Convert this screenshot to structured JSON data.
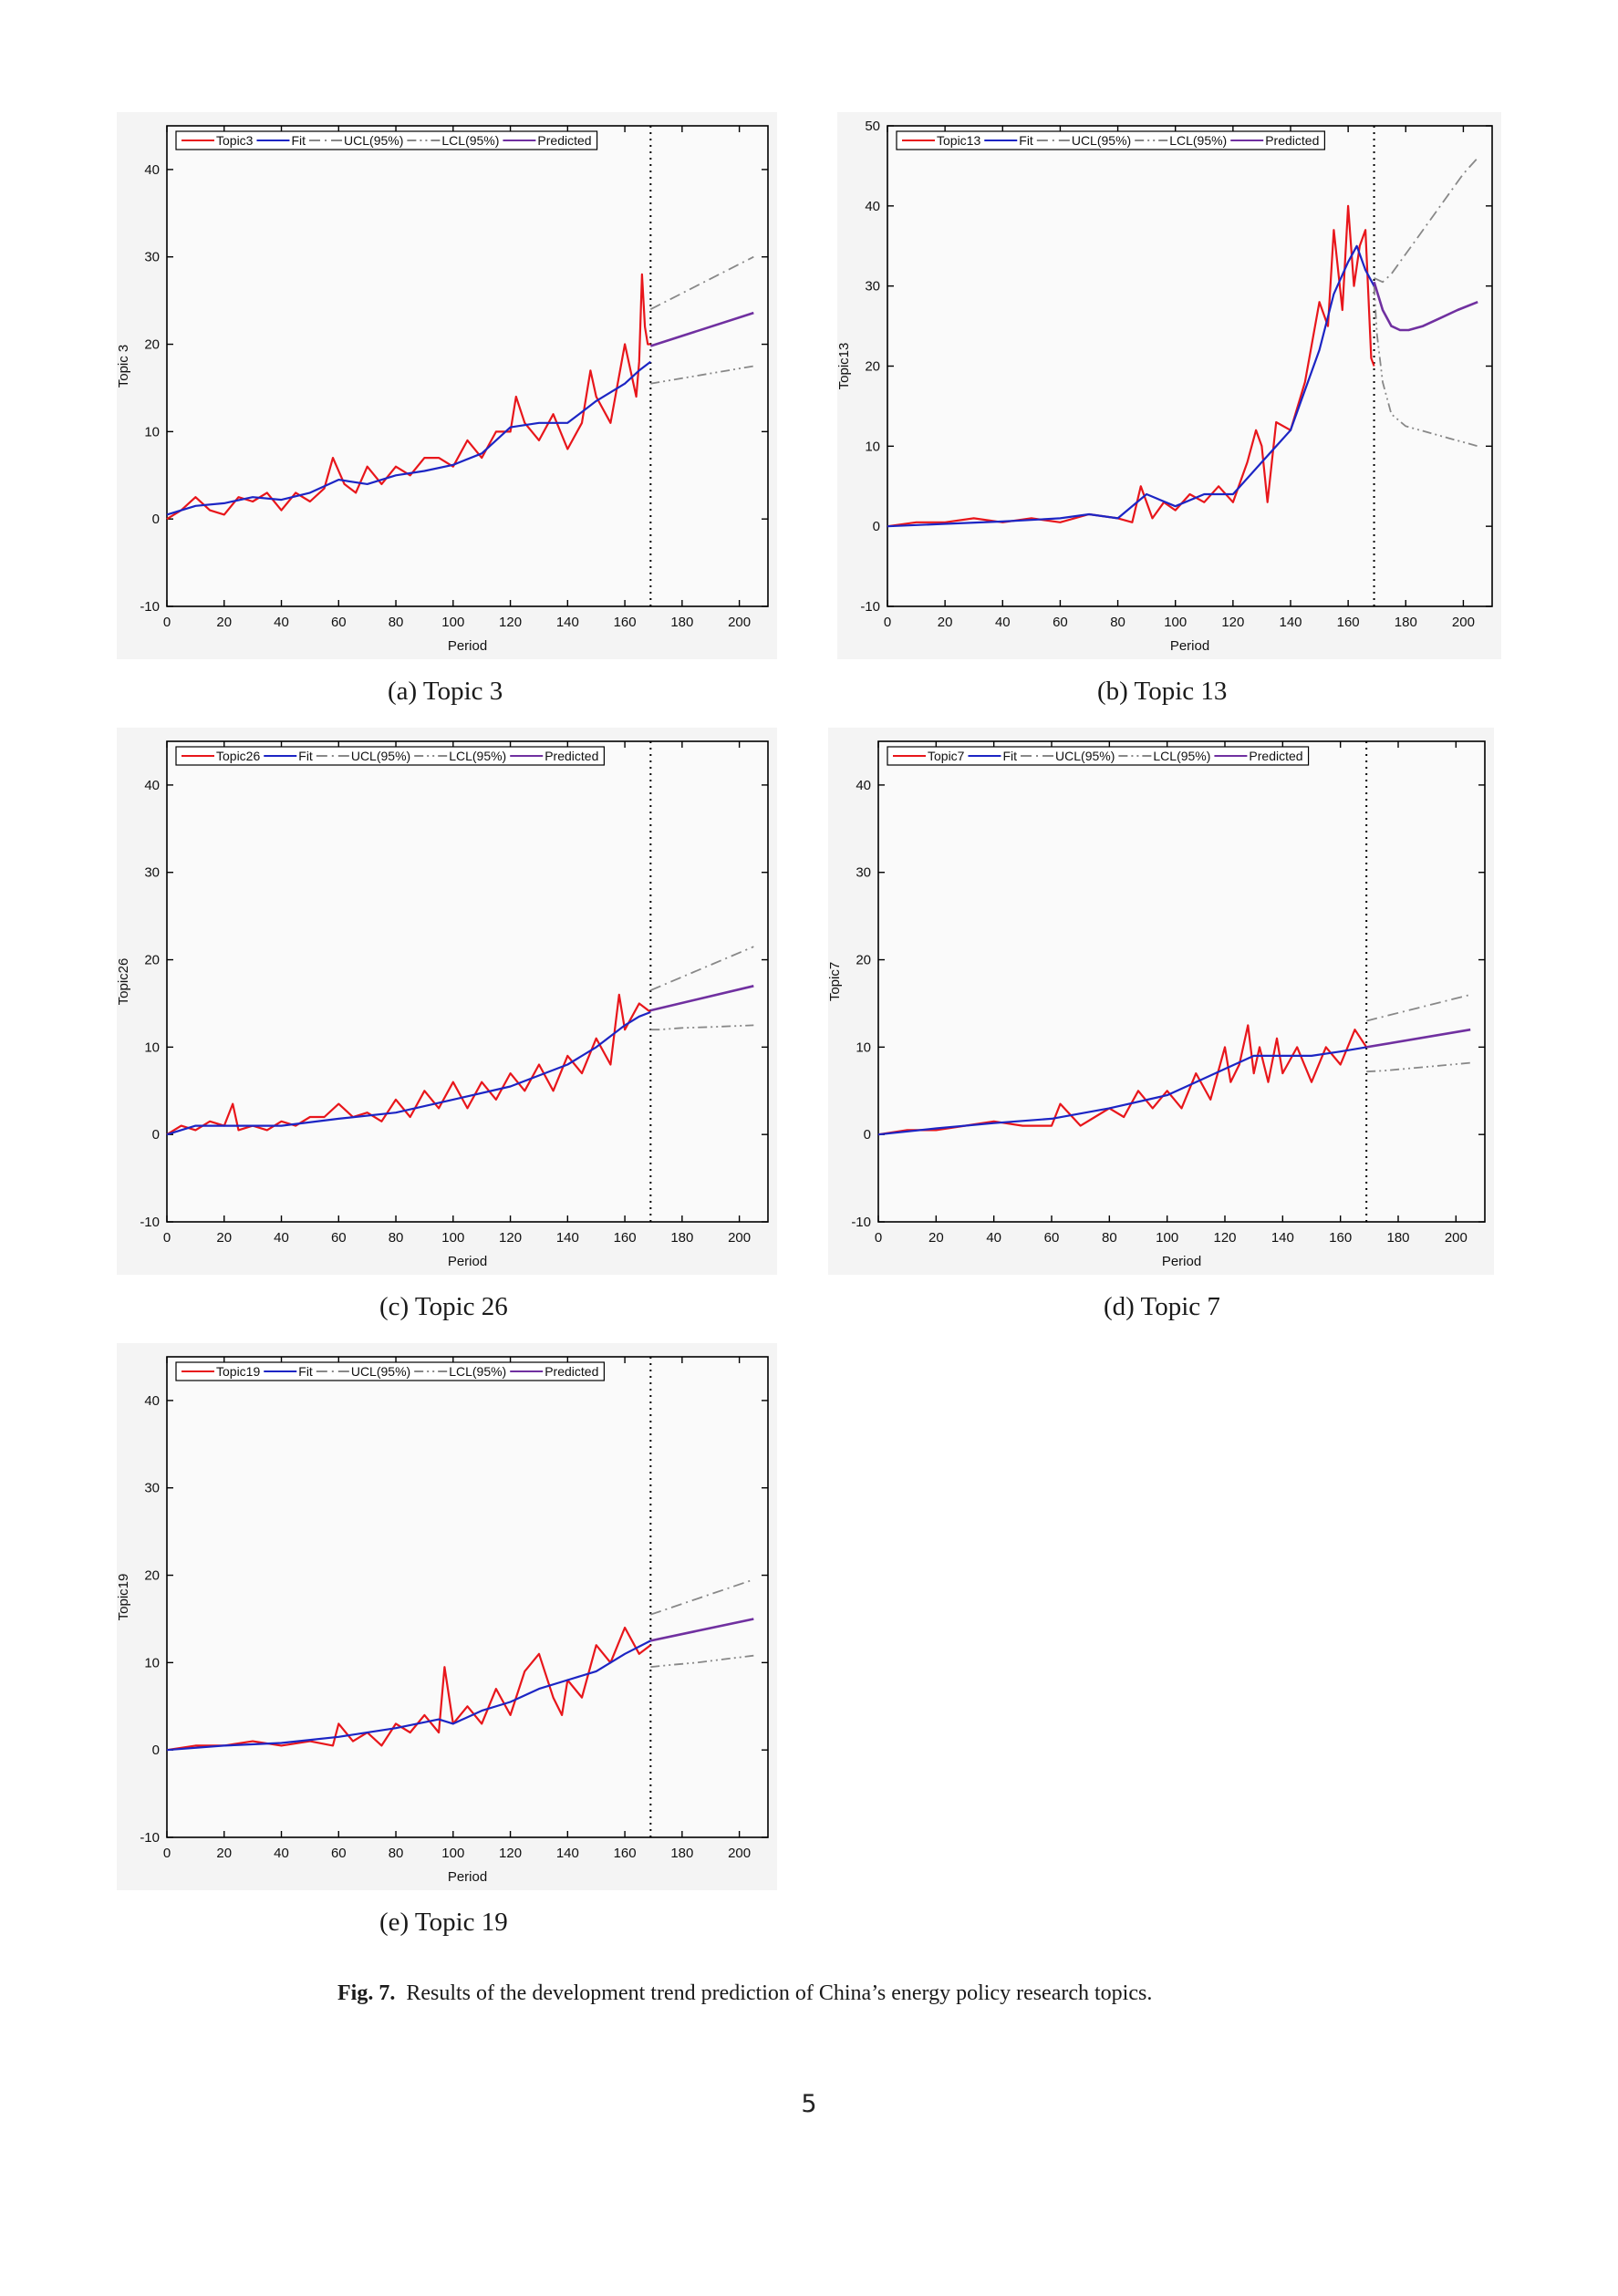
{
  "figure": {
    "label": "Fig. 7.",
    "caption": "Results of the development trend prediction of China’s energy policy research topics."
  },
  "page_number": "5",
  "legend_labels": {
    "fit": "Fit",
    "ucl": "UCL(95%)",
    "lcl": "LCL(95%)",
    "predicted": "Predicted"
  },
  "colors": {
    "actual": "#e8161b",
    "fit": "#1c25c4",
    "ucl": "#888888",
    "lcl": "#888888",
    "predicted": "#7030a0",
    "axis": "#000000"
  },
  "chart_data": [
    {
      "id": "a",
      "caption": "(a) Topic 3",
      "type": "line",
      "xlabel": "Period",
      "ylabel": "Topic 3",
      "xlim": [
        0,
        210
      ],
      "ylim": [
        -10,
        45
      ],
      "xticks": [
        0,
        20,
        40,
        60,
        80,
        100,
        120,
        140,
        160,
        180,
        200
      ],
      "yticks": [
        -10,
        0,
        10,
        20,
        30,
        40
      ],
      "split_x": 169,
      "legend": [
        "Topic3",
        "Fit",
        "UCL(95%)",
        "LCL(95%)",
        "Predicted"
      ],
      "series": [
        {
          "name": "Topic3",
          "kind": "actual",
          "x": [
            0,
            5,
            10,
            15,
            20,
            25,
            30,
            35,
            40,
            45,
            50,
            55,
            58,
            62,
            66,
            70,
            75,
            80,
            85,
            90,
            95,
            100,
            105,
            110,
            115,
            120,
            122,
            125,
            130,
            135,
            140,
            145,
            148,
            150,
            155,
            160,
            164,
            165,
            166,
            167,
            168,
            169
          ],
          "y": [
            0,
            1,
            2.5,
            1,
            0.5,
            2.5,
            2,
            3,
            1,
            3,
            2,
            3.5,
            7,
            4,
            3,
            6,
            4,
            6,
            5,
            7,
            7,
            6,
            9,
            7,
            10,
            10,
            14,
            11,
            9,
            12,
            8,
            11,
            17,
            14,
            11,
            20,
            14,
            18,
            28,
            22,
            20,
            20
          ]
        },
        {
          "name": "Fit",
          "kind": "fit",
          "x": [
            0,
            10,
            20,
            30,
            40,
            50,
            60,
            70,
            80,
            90,
            100,
            110,
            120,
            130,
            140,
            150,
            160,
            165,
            169
          ],
          "y": [
            0.5,
            1.5,
            1.8,
            2.5,
            2.2,
            3,
            4.5,
            4,
            5,
            5.5,
            6.2,
            7.5,
            10.5,
            11,
            11,
            13.5,
            15.5,
            17,
            18
          ]
        },
        {
          "name": "UCL(95%)",
          "kind": "ucl",
          "x": [
            169,
            205
          ],
          "y": [
            24,
            30
          ]
        },
        {
          "name": "LCL(95%)",
          "kind": "lcl",
          "x": [
            169,
            205
          ],
          "y": [
            15.5,
            17.5
          ]
        },
        {
          "name": "Predicted",
          "kind": "predicted",
          "x": [
            169,
            205
          ],
          "y": [
            19.8,
            23.6
          ]
        }
      ]
    },
    {
      "id": "b",
      "caption": "(b) Topic 13",
      "type": "line",
      "xlabel": "Period",
      "ylabel": "Topic13",
      "xlim": [
        0,
        210
      ],
      "ylim": [
        -10,
        50
      ],
      "xticks": [
        0,
        20,
        40,
        60,
        80,
        100,
        120,
        140,
        160,
        180,
        200
      ],
      "yticks": [
        -10,
        0,
        10,
        20,
        30,
        40,
        50
      ],
      "split_x": 169,
      "legend": [
        "Topic13",
        "Fit",
        "UCL(95%)",
        "LCL(95%)",
        "Predicted"
      ],
      "series": [
        {
          "name": "Topic13",
          "kind": "actual",
          "x": [
            0,
            10,
            20,
            30,
            40,
            50,
            60,
            70,
            80,
            85,
            88,
            92,
            96,
            100,
            105,
            110,
            115,
            120,
            125,
            128,
            130,
            132,
            135,
            140,
            145,
            150,
            153,
            155,
            158,
            160,
            162,
            164,
            166,
            168,
            169
          ],
          "y": [
            0,
            0.5,
            0.5,
            1,
            0.5,
            1,
            0.5,
            1.5,
            1,
            0.5,
            5,
            1,
            3,
            2,
            4,
            3,
            5,
            3,
            8,
            12,
            10,
            3,
            13,
            12,
            18,
            28,
            25,
            37,
            27,
            40,
            30,
            35,
            37,
            21,
            20
          ]
        },
        {
          "name": "Fit",
          "kind": "fit",
          "x": [
            0,
            20,
            40,
            60,
            70,
            80,
            90,
            100,
            110,
            120,
            130,
            140,
            150,
            155,
            160,
            163,
            166,
            169
          ],
          "y": [
            0,
            0.3,
            0.6,
            1,
            1.5,
            1,
            4,
            2.5,
            4,
            4,
            8,
            12,
            22,
            29,
            33,
            35,
            32,
            30
          ]
        },
        {
          "name": "UCL(95%)",
          "kind": "ucl",
          "x": [
            169,
            172,
            175,
            180,
            185,
            190,
            195,
            200,
            205
          ],
          "y": [
            31,
            30.5,
            31.5,
            34,
            36.5,
            39,
            41.5,
            44,
            46
          ]
        },
        {
          "name": "LCL(95%)",
          "kind": "lcl",
          "x": [
            169,
            170,
            172,
            175,
            180,
            185,
            190,
            195,
            200,
            205
          ],
          "y": [
            30,
            24,
            18,
            14,
            12.5,
            12,
            11.5,
            11,
            10.5,
            10
          ]
        },
        {
          "name": "Predicted",
          "kind": "predicted",
          "x": [
            169,
            172,
            175,
            178,
            181,
            186,
            192,
            198,
            205
          ],
          "y": [
            30.5,
            27,
            25,
            24.5,
            24.5,
            25,
            26,
            27,
            28
          ]
        }
      ]
    },
    {
      "id": "c",
      "caption": "(c) Topic 26",
      "type": "line",
      "xlabel": "Period",
      "ylabel": "Topic26",
      "xlim": [
        0,
        210
      ],
      "ylim": [
        -10,
        45
      ],
      "xticks": [
        0,
        20,
        40,
        60,
        80,
        100,
        120,
        140,
        160,
        180,
        200
      ],
      "yticks": [
        -10,
        0,
        10,
        20,
        30,
        40
      ],
      "split_x": 169,
      "legend": [
        "Topic26",
        "Fit",
        "UCL(95%)",
        "LCL(95%)",
        "Predicted"
      ],
      "series": [
        {
          "name": "Topic26",
          "kind": "actual",
          "x": [
            0,
            5,
            10,
            15,
            20,
            23,
            25,
            30,
            35,
            40,
            45,
            50,
            55,
            60,
            65,
            70,
            75,
            80,
            85,
            90,
            95,
            100,
            105,
            110,
            115,
            120,
            125,
            130,
            135,
            140,
            145,
            150,
            155,
            158,
            160,
            165,
            169
          ],
          "y": [
            0,
            1,
            0.5,
            1.5,
            1,
            3.5,
            0.5,
            1,
            0.5,
            1.5,
            1,
            2,
            2,
            3.5,
            2,
            2.5,
            1.5,
            4,
            2,
            5,
            3,
            6,
            3,
            6,
            4,
            7,
            5,
            8,
            5,
            9,
            7,
            11,
            8,
            16,
            12,
            15,
            14
          ]
        },
        {
          "name": "Fit",
          "kind": "fit",
          "x": [
            0,
            10,
            20,
            40,
            60,
            80,
            100,
            120,
            140,
            150,
            160,
            165,
            169
          ],
          "y": [
            0,
            1,
            1,
            1,
            1.8,
            2.5,
            4,
            5.5,
            8,
            10,
            12.5,
            13.5,
            14
          ]
        },
        {
          "name": "UCL(95%)",
          "kind": "ucl",
          "x": [
            169,
            205
          ],
          "y": [
            16.5,
            21.5
          ]
        },
        {
          "name": "LCL(95%)",
          "kind": "lcl",
          "x": [
            169,
            172,
            180,
            190,
            205
          ],
          "y": [
            12,
            12,
            12.2,
            12.3,
            12.5
          ]
        },
        {
          "name": "Predicted",
          "kind": "predicted",
          "x": [
            169,
            205
          ],
          "y": [
            14.2,
            17
          ]
        }
      ]
    },
    {
      "id": "d",
      "caption": "(d) Topic 7",
      "type": "line",
      "xlabel": "Period",
      "ylabel": "Topic7",
      "xlim": [
        0,
        210
      ],
      "ylim": [
        -10,
        45
      ],
      "xticks": [
        0,
        20,
        40,
        60,
        80,
        100,
        120,
        140,
        160,
        180,
        200
      ],
      "yticks": [
        -10,
        0,
        10,
        20,
        30,
        40
      ],
      "split_x": 169,
      "legend": [
        "Topic7",
        "Fit",
        "UCL(95%)",
        "LCL(95%)",
        "Predicted"
      ],
      "series": [
        {
          "name": "Topic7",
          "kind": "actual",
          "x": [
            0,
            10,
            20,
            30,
            40,
            50,
            60,
            63,
            70,
            75,
            80,
            85,
            90,
            95,
            100,
            105,
            110,
            115,
            120,
            122,
            125,
            128,
            130,
            132,
            135,
            138,
            140,
            145,
            150,
            155,
            160,
            165,
            169
          ],
          "y": [
            0,
            0.5,
            0.5,
            1,
            1.5,
            1,
            1,
            3.5,
            1,
            2,
            3,
            2,
            5,
            3,
            5,
            3,
            7,
            4,
            10,
            6,
            8,
            12.5,
            7,
            10,
            6,
            11,
            7,
            10,
            6,
            10,
            8,
            12,
            10
          ]
        },
        {
          "name": "Fit",
          "kind": "fit",
          "x": [
            0,
            20,
            40,
            60,
            80,
            100,
            110,
            120,
            130,
            140,
            150,
            160,
            169
          ],
          "y": [
            0,
            0.7,
            1.3,
            1.8,
            3,
            4.5,
            6,
            7.5,
            9,
            9,
            9,
            9.5,
            10
          ]
        },
        {
          "name": "UCL(95%)",
          "kind": "ucl",
          "x": [
            169,
            205
          ],
          "y": [
            13,
            16
          ]
        },
        {
          "name": "LCL(95%)",
          "kind": "lcl",
          "x": [
            169,
            175,
            185,
            195,
            205
          ],
          "y": [
            7.2,
            7.3,
            7.6,
            7.9,
            8.2
          ]
        },
        {
          "name": "Predicted",
          "kind": "predicted",
          "x": [
            169,
            205
          ],
          "y": [
            10,
            12
          ]
        }
      ]
    },
    {
      "id": "e",
      "caption": "(e) Topic 19",
      "type": "line",
      "xlabel": "Period",
      "ylabel": "Topic19",
      "xlim": [
        0,
        210
      ],
      "ylim": [
        -10,
        45
      ],
      "xticks": [
        0,
        20,
        40,
        60,
        80,
        100,
        120,
        140,
        160,
        180,
        200
      ],
      "yticks": [
        -10,
        0,
        10,
        20,
        30,
        40
      ],
      "split_x": 169,
      "legend": [
        "Topic19",
        "Fit",
        "UCL(95%)",
        "LCL(95%)",
        "Predicted"
      ],
      "series": [
        {
          "name": "Topic19",
          "kind": "actual",
          "x": [
            0,
            10,
            20,
            30,
            40,
            50,
            58,
            60,
            65,
            70,
            75,
            80,
            85,
            90,
            95,
            97,
            100,
            105,
            110,
            115,
            120,
            125,
            130,
            135,
            138,
            140,
            145,
            150,
            155,
            160,
            165,
            169
          ],
          "y": [
            0,
            0.5,
            0.5,
            1,
            0.5,
            1,
            0.5,
            3,
            1,
            2,
            0.5,
            3,
            2,
            4,
            2,
            9.5,
            3,
            5,
            3,
            7,
            4,
            9,
            11,
            6,
            4,
            8,
            6,
            12,
            10,
            14,
            11,
            12
          ]
        },
        {
          "name": "Fit",
          "kind": "fit",
          "x": [
            0,
            20,
            40,
            60,
            80,
            95,
            100,
            110,
            120,
            130,
            140,
            150,
            160,
            169
          ],
          "y": [
            0,
            0.5,
            0.8,
            1.5,
            2.5,
            3.5,
            3,
            4.5,
            5.5,
            7,
            8,
            9,
            11,
            12.5
          ]
        },
        {
          "name": "UCL(95%)",
          "kind": "ucl",
          "x": [
            169,
            205
          ],
          "y": [
            15.5,
            19.5
          ]
        },
        {
          "name": "LCL(95%)",
          "kind": "lcl",
          "x": [
            169,
            175,
            185,
            195,
            205
          ],
          "y": [
            9.5,
            9.7,
            10,
            10.4,
            10.8
          ]
        },
        {
          "name": "Predicted",
          "kind": "predicted",
          "x": [
            169,
            205
          ],
          "y": [
            12.5,
            15
          ]
        }
      ]
    }
  ]
}
